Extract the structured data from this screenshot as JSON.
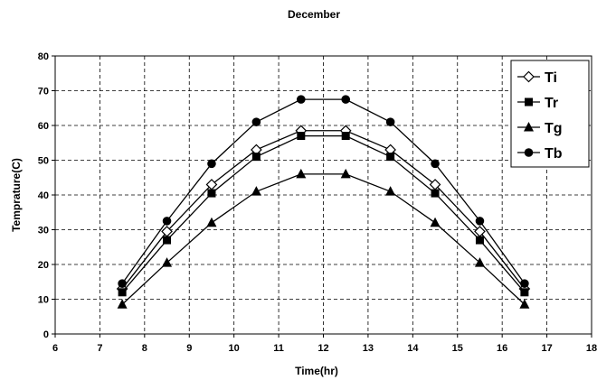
{
  "chart_data": {
    "type": "line",
    "title": "December",
    "xlabel": "Time(hr)",
    "ylabel": "Temprature(C)",
    "xlim": [
      6,
      18
    ],
    "ylim": [
      0,
      80
    ],
    "xticks": [
      6,
      7,
      8,
      9,
      10,
      11,
      12,
      13,
      14,
      15,
      16,
      17,
      18
    ],
    "yticks": [
      0,
      10,
      20,
      30,
      40,
      50,
      60,
      70,
      80
    ],
    "grid": true,
    "legend_position": "top-right",
    "x": [
      7.5,
      8.5,
      9.5,
      10.5,
      11.5,
      12.5,
      13.5,
      14.5,
      15.5,
      16.5
    ],
    "series": [
      {
        "name": "Ti",
        "marker": "diamond-open",
        "values": [
          13,
          29.5,
          43,
          53,
          58.5,
          58.5,
          53,
          43,
          29.5,
          13
        ]
      },
      {
        "name": "Tr",
        "marker": "square",
        "values": [
          12,
          27,
          40.5,
          51,
          57,
          57,
          51,
          40.5,
          27,
          12
        ]
      },
      {
        "name": "Tg",
        "marker": "triangle",
        "values": [
          8.5,
          20.5,
          32,
          41,
          46,
          46,
          41,
          32,
          20.5,
          8.5
        ]
      },
      {
        "name": "Tb",
        "marker": "circle",
        "values": [
          14.5,
          32.5,
          49,
          61,
          67.5,
          67.5,
          61,
          49,
          32.5,
          14.5
        ]
      }
    ],
    "line_color": "#000000"
  }
}
